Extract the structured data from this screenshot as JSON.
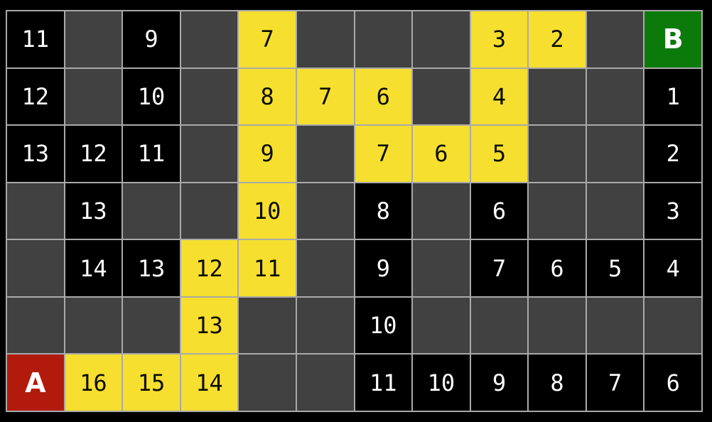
{
  "colors": {
    "page_background": "#000000",
    "grid_line": "#a9a9a9",
    "empty_cell": "#414141",
    "visited_cell": "#000000",
    "path_cell": "#f6df2f",
    "start_cell": "#b21b0b",
    "goal_cell": "#0b7a0b",
    "visited_text": "#ffffff",
    "path_text": "#0d0d00",
    "marker_text": "#ffffff"
  },
  "grid": {
    "rows": 7,
    "cols": 12,
    "start_label": "A",
    "goal_label": "B",
    "cell_types": {
      "empty": "unexplored dark cell",
      "visited": "black cell with distance-to-goal number",
      "path": "yellow shortest-path cell with distance number",
      "start": "red start cell A",
      "goal": "green goal cell B"
    },
    "cells": [
      [
        {
          "t": "visited",
          "v": "11"
        },
        {
          "t": "empty",
          "v": ""
        },
        {
          "t": "visited",
          "v": "9"
        },
        {
          "t": "empty",
          "v": ""
        },
        {
          "t": "path",
          "v": "7"
        },
        {
          "t": "empty",
          "v": ""
        },
        {
          "t": "empty",
          "v": ""
        },
        {
          "t": "empty",
          "v": ""
        },
        {
          "t": "path",
          "v": "3"
        },
        {
          "t": "path",
          "v": "2"
        },
        {
          "t": "empty",
          "v": ""
        },
        {
          "t": "goal",
          "v": "B"
        }
      ],
      [
        {
          "t": "visited",
          "v": "12"
        },
        {
          "t": "empty",
          "v": ""
        },
        {
          "t": "visited",
          "v": "10"
        },
        {
          "t": "empty",
          "v": ""
        },
        {
          "t": "path",
          "v": "8"
        },
        {
          "t": "path",
          "v": "7"
        },
        {
          "t": "path",
          "v": "6"
        },
        {
          "t": "empty",
          "v": ""
        },
        {
          "t": "path",
          "v": "4"
        },
        {
          "t": "empty",
          "v": ""
        },
        {
          "t": "empty",
          "v": ""
        },
        {
          "t": "visited",
          "v": "1"
        }
      ],
      [
        {
          "t": "visited",
          "v": "13"
        },
        {
          "t": "visited",
          "v": "12"
        },
        {
          "t": "visited",
          "v": "11"
        },
        {
          "t": "empty",
          "v": ""
        },
        {
          "t": "path",
          "v": "9"
        },
        {
          "t": "empty",
          "v": ""
        },
        {
          "t": "path",
          "v": "7"
        },
        {
          "t": "path",
          "v": "6"
        },
        {
          "t": "path",
          "v": "5"
        },
        {
          "t": "empty",
          "v": ""
        },
        {
          "t": "empty",
          "v": ""
        },
        {
          "t": "visited",
          "v": "2"
        }
      ],
      [
        {
          "t": "empty",
          "v": ""
        },
        {
          "t": "visited",
          "v": "13"
        },
        {
          "t": "empty",
          "v": ""
        },
        {
          "t": "empty",
          "v": ""
        },
        {
          "t": "path",
          "v": "10"
        },
        {
          "t": "empty",
          "v": ""
        },
        {
          "t": "visited",
          "v": "8"
        },
        {
          "t": "empty",
          "v": ""
        },
        {
          "t": "visited",
          "v": "6"
        },
        {
          "t": "empty",
          "v": ""
        },
        {
          "t": "empty",
          "v": ""
        },
        {
          "t": "visited",
          "v": "3"
        }
      ],
      [
        {
          "t": "empty",
          "v": ""
        },
        {
          "t": "visited",
          "v": "14"
        },
        {
          "t": "visited",
          "v": "13"
        },
        {
          "t": "path",
          "v": "12"
        },
        {
          "t": "path",
          "v": "11"
        },
        {
          "t": "empty",
          "v": ""
        },
        {
          "t": "visited",
          "v": "9"
        },
        {
          "t": "empty",
          "v": ""
        },
        {
          "t": "visited",
          "v": "7"
        },
        {
          "t": "visited",
          "v": "6"
        },
        {
          "t": "visited",
          "v": "5"
        },
        {
          "t": "visited",
          "v": "4"
        }
      ],
      [
        {
          "t": "empty",
          "v": ""
        },
        {
          "t": "empty",
          "v": ""
        },
        {
          "t": "empty",
          "v": ""
        },
        {
          "t": "path",
          "v": "13"
        },
        {
          "t": "empty",
          "v": ""
        },
        {
          "t": "empty",
          "v": ""
        },
        {
          "t": "visited",
          "v": "10"
        },
        {
          "t": "empty",
          "v": ""
        },
        {
          "t": "empty",
          "v": ""
        },
        {
          "t": "empty",
          "v": ""
        },
        {
          "t": "empty",
          "v": ""
        },
        {
          "t": "empty",
          "v": ""
        }
      ],
      [
        {
          "t": "start",
          "v": "A"
        },
        {
          "t": "path",
          "v": "16"
        },
        {
          "t": "path",
          "v": "15"
        },
        {
          "t": "path",
          "v": "14"
        },
        {
          "t": "empty",
          "v": ""
        },
        {
          "t": "empty",
          "v": ""
        },
        {
          "t": "visited",
          "v": "11"
        },
        {
          "t": "visited",
          "v": "10"
        },
        {
          "t": "visited",
          "v": "9"
        },
        {
          "t": "visited",
          "v": "8"
        },
        {
          "t": "visited",
          "v": "7"
        },
        {
          "t": "visited",
          "v": "6"
        }
      ]
    ]
  }
}
